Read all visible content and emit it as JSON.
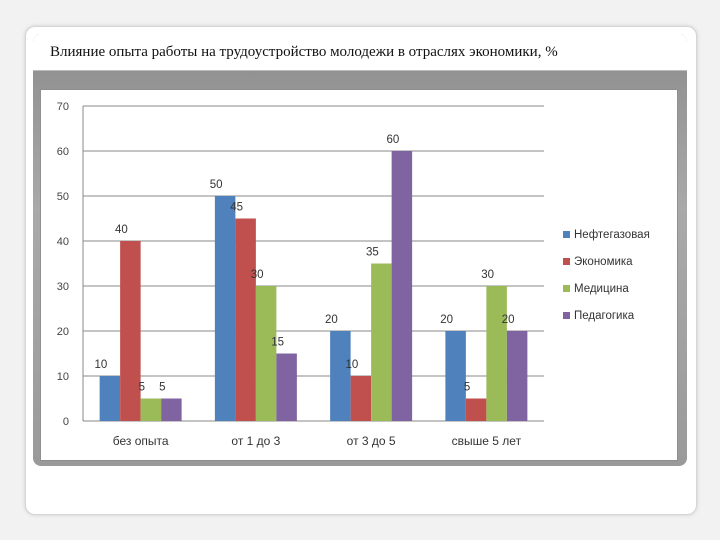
{
  "slide": {
    "title": "Влияние опыта работы на трудоустройство молодежи в отраслях экономики, %"
  },
  "chart_data": {
    "type": "bar",
    "title": "",
    "xlabel": "",
    "ylabel": "",
    "ylim": [
      0,
      70
    ],
    "yticks": [
      "0",
      "10",
      "20",
      "30",
      "40",
      "50",
      "60",
      "70"
    ],
    "grid": true,
    "legend_position": "right",
    "categories": [
      "без опыта",
      "от 1 до 3",
      "от 3 до 5",
      "свыше 5 лет"
    ],
    "series": [
      {
        "name": "Нефтегазовая",
        "color": "#4f81bd",
        "values": [
          10,
          50,
          20,
          20
        ]
      },
      {
        "name": "Экономика",
        "color": "#c0504d",
        "values": [
          40,
          45,
          10,
          5
        ]
      },
      {
        "name": "Медицина",
        "color": "#9bbb59",
        "values": [
          5,
          30,
          35,
          30
        ]
      },
      {
        "name": "Педагогика",
        "color": "#8064a2",
        "values": [
          5,
          15,
          60,
          20
        ]
      }
    ]
  }
}
